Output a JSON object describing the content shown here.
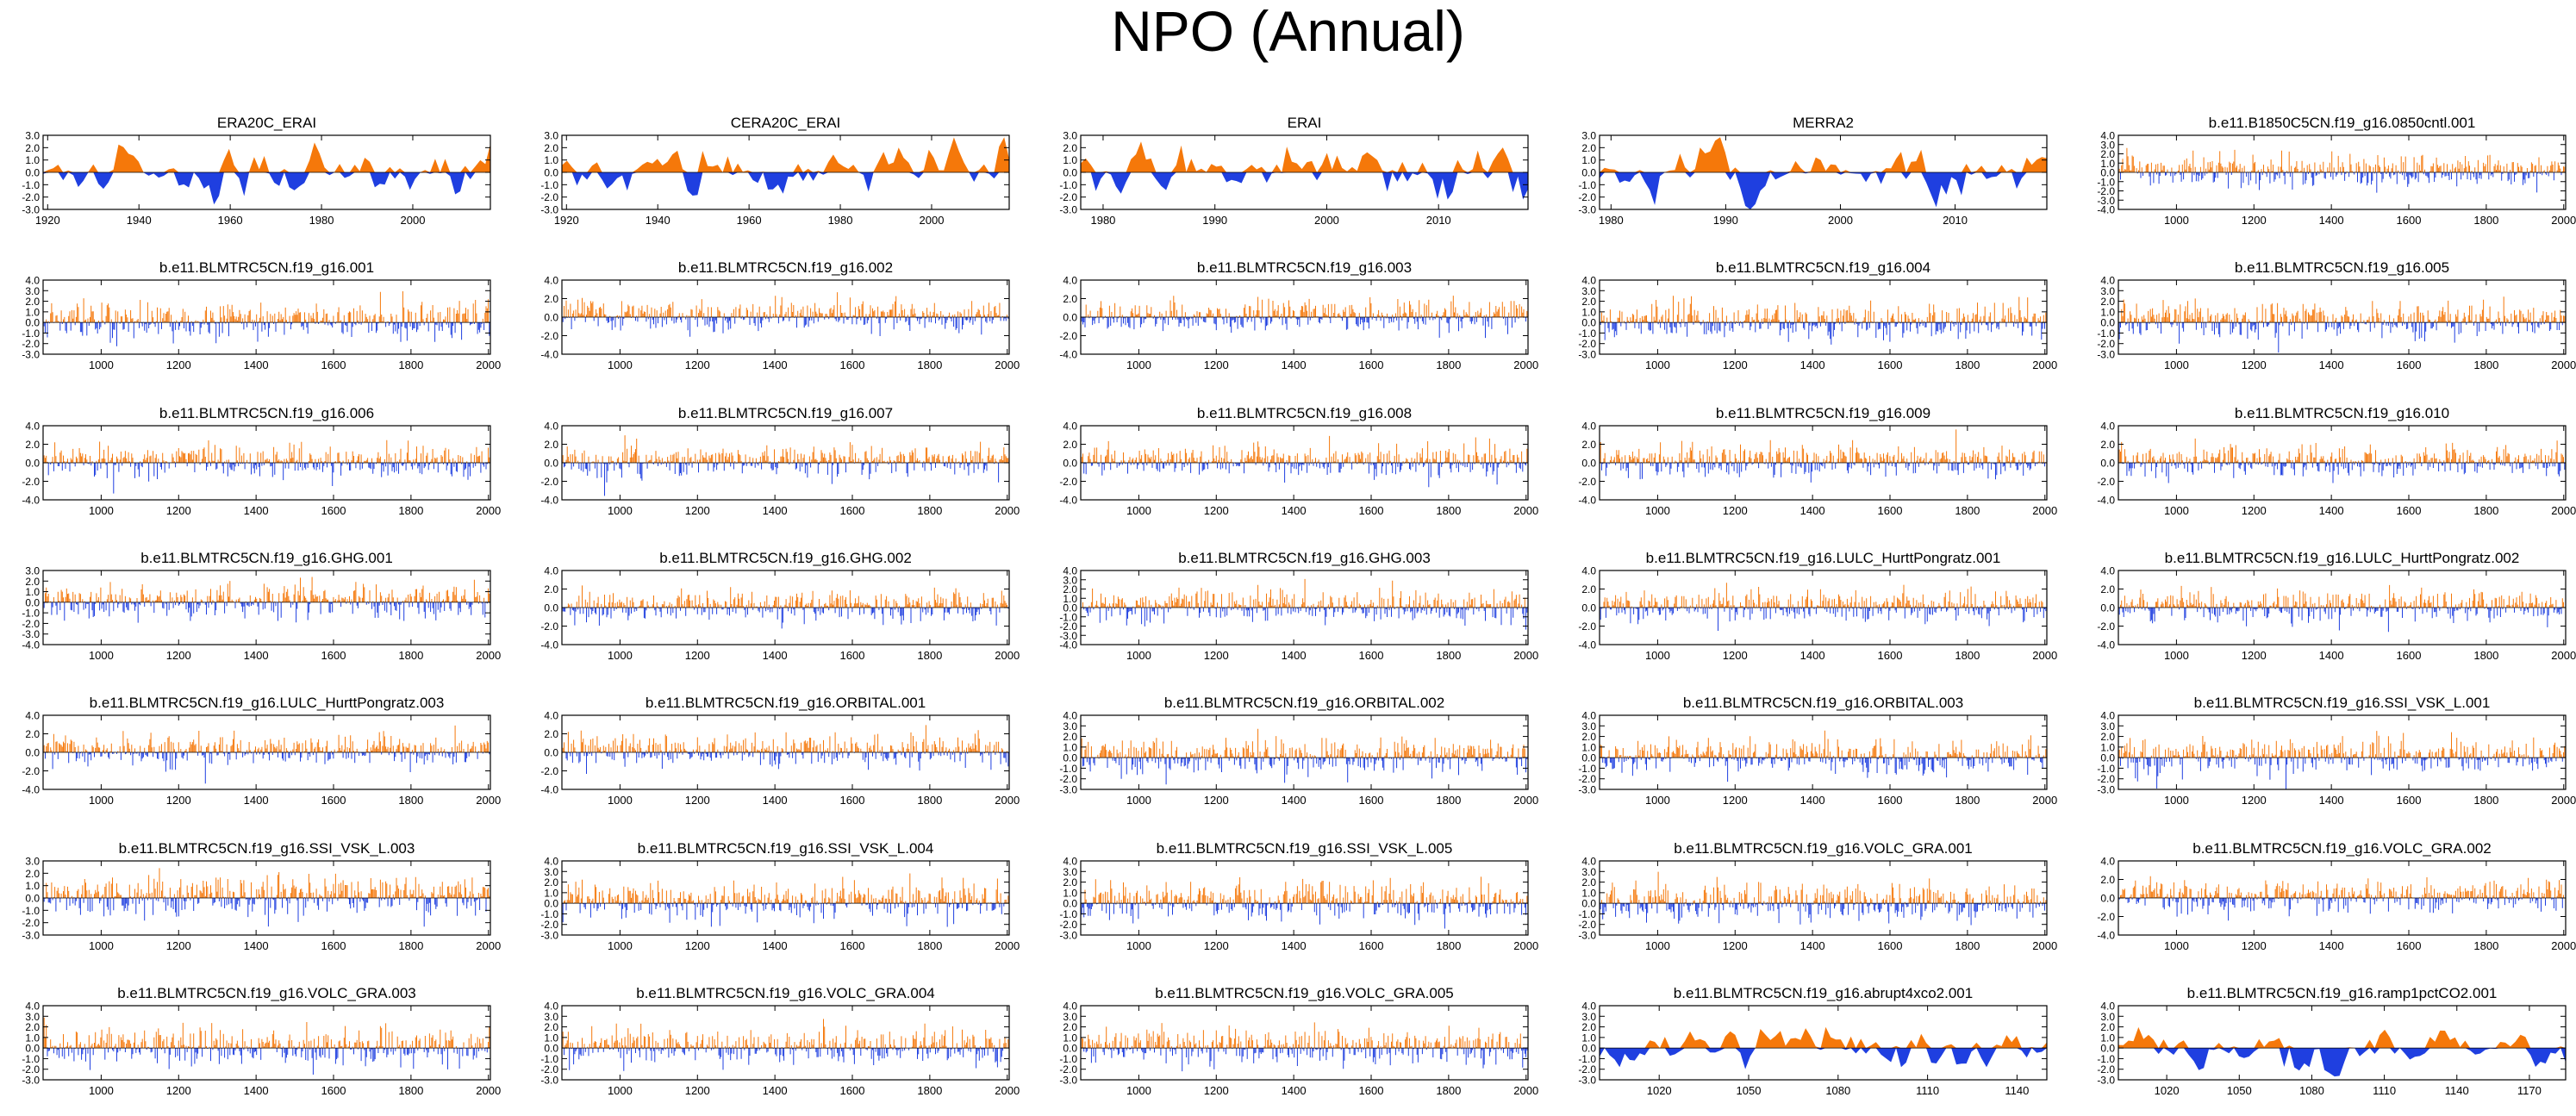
{
  "chart_data": {
    "title": "NPO (Annual)",
    "type": "area",
    "positive_color": "#f5780a",
    "negative_color": "#1f3fe0",
    "panels": [
      {
        "title": "ERA20C_ERAI",
        "style": "smooth",
        "ylim": [
          -3,
          3
        ],
        "yticks": [
          "3.0",
          "2.0",
          "1.0",
          "0.0",
          "-1.0",
          "-2.0",
          "-3.0"
        ],
        "xrange": [
          1919,
          2017
        ],
        "xticks": [
          1920,
          1940,
          1960,
          1980,
          2000
        ],
        "seed": 11
      },
      {
        "title": "CERA20C_ERAI",
        "style": "smooth",
        "ylim": [
          -3,
          3
        ],
        "yticks": [
          "3.0",
          "2.0",
          "1.0",
          "0.0",
          "-1.0",
          "-2.0",
          "-3.0"
        ],
        "xrange": [
          1919,
          2017
        ],
        "xticks": [
          1920,
          1940,
          1960,
          1980,
          2000
        ],
        "seed": 12
      },
      {
        "title": "ERAI",
        "style": "smooth",
        "ylim": [
          -3,
          3
        ],
        "yticks": [
          "3.0",
          "2.0",
          "1.0",
          "0.0",
          "-1.0",
          "-2.0",
          "-3.0"
        ],
        "xrange": [
          1978,
          2018
        ],
        "xticks": [
          1980,
          1990,
          2000,
          2010
        ],
        "seed": 13
      },
      {
        "title": "MERRA2",
        "style": "smooth",
        "ylim": [
          -3,
          3
        ],
        "yticks": [
          "3.0",
          "2.0",
          "1.0",
          "0.0",
          "-1.0",
          "-2.0",
          "-3.0"
        ],
        "xrange": [
          1979,
          2018
        ],
        "xticks": [
          1980,
          1990,
          2000,
          2010
        ],
        "seed": 14
      },
      {
        "title": "b.e11.B1850C5CN.f19_g16.0850cntl.001",
        "style": "spiky",
        "ylim": [
          -4,
          4
        ],
        "yticks": [
          "4.0",
          "3.0",
          "2.0",
          "1.0",
          "0.0",
          "-1.0",
          "-2.0",
          "-3.0",
          "-4.0"
        ],
        "xrange": [
          850,
          2005
        ],
        "xticks": [
          1000,
          1200,
          1400,
          1600,
          1800,
          2000
        ],
        "seed": 15
      },
      {
        "title": "b.e11.BLMTRC5CN.f19_g16.001",
        "style": "spiky",
        "ylim": [
          -3,
          4
        ],
        "yticks": [
          "4.0",
          "3.0",
          "2.0",
          "1.0",
          "0.0",
          "-1.0",
          "-2.0",
          "-3.0"
        ],
        "xrange": [
          850,
          2005
        ],
        "xticks": [
          1000,
          1200,
          1400,
          1600,
          1800,
          2000
        ],
        "seed": 21
      },
      {
        "title": "b.e11.BLMTRC5CN.f19_g16.002",
        "style": "spiky",
        "ylim": [
          -4,
          4
        ],
        "yticks": [
          "4.0",
          "2.0",
          "0.0",
          "-2.0",
          "-4.0"
        ],
        "xrange": [
          850,
          2005
        ],
        "xticks": [
          1000,
          1200,
          1400,
          1600,
          1800,
          2000
        ],
        "seed": 22
      },
      {
        "title": "b.e11.BLMTRC5CN.f19_g16.003",
        "style": "spiky",
        "ylim": [
          -4,
          4
        ],
        "yticks": [
          "4.0",
          "2.0",
          "0.0",
          "-2.0",
          "-4.0"
        ],
        "xrange": [
          850,
          2005
        ],
        "xticks": [
          1000,
          1200,
          1400,
          1600,
          1800,
          2000
        ],
        "seed": 23
      },
      {
        "title": "b.e11.BLMTRC5CN.f19_g16.004",
        "style": "spiky",
        "ylim": [
          -3,
          4
        ],
        "yticks": [
          "4.0",
          "3.0",
          "2.0",
          "1.0",
          "0.0",
          "-1.0",
          "-2.0",
          "-3.0"
        ],
        "xrange": [
          850,
          2005
        ],
        "xticks": [
          1000,
          1200,
          1400,
          1600,
          1800,
          2000
        ],
        "seed": 24
      },
      {
        "title": "b.e11.BLMTRC5CN.f19_g16.005",
        "style": "spiky",
        "ylim": [
          -3,
          4
        ],
        "yticks": [
          "4.0",
          "3.0",
          "2.0",
          "1.0",
          "0.0",
          "-1.0",
          "-2.0",
          "-3.0"
        ],
        "xrange": [
          850,
          2005
        ],
        "xticks": [
          1000,
          1200,
          1400,
          1600,
          1800,
          2000
        ],
        "seed": 25
      },
      {
        "title": "b.e11.BLMTRC5CN.f19_g16.006",
        "style": "spiky",
        "ylim": [
          -4,
          4
        ],
        "yticks": [
          "4.0",
          "2.0",
          "0.0",
          "-2.0",
          "-4.0"
        ],
        "xrange": [
          850,
          2005
        ],
        "xticks": [
          1000,
          1200,
          1400,
          1600,
          1800,
          2000
        ],
        "seed": 31
      },
      {
        "title": "b.e11.BLMTRC5CN.f19_g16.007",
        "style": "spiky",
        "ylim": [
          -4,
          4
        ],
        "yticks": [
          "4.0",
          "2.0",
          "0.0",
          "-2.0",
          "-4.0"
        ],
        "xrange": [
          850,
          2005
        ],
        "xticks": [
          1000,
          1200,
          1400,
          1600,
          1800,
          2000
        ],
        "seed": 32
      },
      {
        "title": "b.e11.BLMTRC5CN.f19_g16.008",
        "style": "spiky",
        "ylim": [
          -4,
          4
        ],
        "yticks": [
          "4.0",
          "2.0",
          "0.0",
          "-2.0",
          "-4.0"
        ],
        "xrange": [
          850,
          2005
        ],
        "xticks": [
          1000,
          1200,
          1400,
          1600,
          1800,
          2000
        ],
        "seed": 33
      },
      {
        "title": "b.e11.BLMTRC5CN.f19_g16.009",
        "style": "spiky",
        "ylim": [
          -4,
          4
        ],
        "yticks": [
          "4.0",
          "2.0",
          "0.0",
          "-2.0",
          "-4.0"
        ],
        "xrange": [
          850,
          2005
        ],
        "xticks": [
          1000,
          1200,
          1400,
          1600,
          1800,
          2000
        ],
        "seed": 34
      },
      {
        "title": "b.e11.BLMTRC5CN.f19_g16.010",
        "style": "spiky",
        "ylim": [
          -4,
          4
        ],
        "yticks": [
          "4.0",
          "2.0",
          "0.0",
          "-2.0",
          "-4.0"
        ],
        "xrange": [
          850,
          2005
        ],
        "xticks": [
          1000,
          1200,
          1400,
          1600,
          1800,
          2000
        ],
        "seed": 35
      },
      {
        "title": "b.e11.BLMTRC5CN.f19_g16.GHG.001",
        "style": "spiky",
        "ylim": [
          -4,
          3
        ],
        "yticks": [
          "3.0",
          "2.0",
          "1.0",
          "0.0",
          "-1.0",
          "-2.0",
          "-3.0",
          "-4.0"
        ],
        "xrange": [
          850,
          2005
        ],
        "xticks": [
          1000,
          1200,
          1400,
          1600,
          1800,
          2000
        ],
        "seed": 41
      },
      {
        "title": "b.e11.BLMTRC5CN.f19_g16.GHG.002",
        "style": "spiky",
        "ylim": [
          -4,
          4
        ],
        "yticks": [
          "4.0",
          "2.0",
          "0.0",
          "-2.0",
          "-4.0"
        ],
        "xrange": [
          850,
          2005
        ],
        "xticks": [
          1000,
          1200,
          1400,
          1600,
          1800,
          2000
        ],
        "seed": 42
      },
      {
        "title": "b.e11.BLMTRC5CN.f19_g16.GHG.003",
        "style": "spiky",
        "ylim": [
          -4,
          4
        ],
        "yticks": [
          "4.0",
          "3.0",
          "2.0",
          "1.0",
          "0.0",
          "-1.0",
          "-2.0",
          "-3.0",
          "-4.0"
        ],
        "xrange": [
          850,
          2005
        ],
        "xticks": [
          1000,
          1200,
          1400,
          1600,
          1800,
          2000
        ],
        "seed": 43
      },
      {
        "title": "b.e11.BLMTRC5CN.f19_g16.LULC_HurttPongratz.001",
        "style": "spiky",
        "ylim": [
          -4,
          4
        ],
        "yticks": [
          "4.0",
          "2.0",
          "0.0",
          "-2.0",
          "-4.0"
        ],
        "xrange": [
          850,
          2005
        ],
        "xticks": [
          1000,
          1200,
          1400,
          1600,
          1800,
          2000
        ],
        "seed": 44
      },
      {
        "title": "b.e11.BLMTRC5CN.f19_g16.LULC_HurttPongratz.002",
        "style": "spiky",
        "ylim": [
          -4,
          4
        ],
        "yticks": [
          "4.0",
          "2.0",
          "0.0",
          "-2.0",
          "-4.0"
        ],
        "xrange": [
          850,
          2005
        ],
        "xticks": [
          1000,
          1200,
          1400,
          1600,
          1800,
          2000
        ],
        "seed": 45
      },
      {
        "title": "b.e11.BLMTRC5CN.f19_g16.LULC_HurttPongratz.003",
        "style": "spiky",
        "ylim": [
          -4,
          4
        ],
        "yticks": [
          "4.0",
          "2.0",
          "0.0",
          "-2.0",
          "-4.0"
        ],
        "xrange": [
          850,
          2005
        ],
        "xticks": [
          1000,
          1200,
          1400,
          1600,
          1800,
          2000
        ],
        "seed": 51
      },
      {
        "title": "b.e11.BLMTRC5CN.f19_g16.ORBITAL.001",
        "style": "spiky",
        "ylim": [
          -4,
          4
        ],
        "yticks": [
          "4.0",
          "2.0",
          "0.0",
          "-2.0",
          "-4.0"
        ],
        "xrange": [
          850,
          2005
        ],
        "xticks": [
          1000,
          1200,
          1400,
          1600,
          1800,
          2000
        ],
        "seed": 52
      },
      {
        "title": "b.e11.BLMTRC5CN.f19_g16.ORBITAL.002",
        "style": "spiky",
        "ylim": [
          -3,
          4
        ],
        "yticks": [
          "4.0",
          "3.0",
          "2.0",
          "1.0",
          "0.0",
          "-1.0",
          "-2.0",
          "-3.0"
        ],
        "xrange": [
          850,
          2005
        ],
        "xticks": [
          1000,
          1200,
          1400,
          1600,
          1800,
          2000
        ],
        "seed": 53
      },
      {
        "title": "b.e11.BLMTRC5CN.f19_g16.ORBITAL.003",
        "style": "spiky",
        "ylim": [
          -3,
          4
        ],
        "yticks": [
          "4.0",
          "3.0",
          "2.0",
          "1.0",
          "0.0",
          "-1.0",
          "-2.0",
          "-3.0"
        ],
        "xrange": [
          850,
          2005
        ],
        "xticks": [
          1000,
          1200,
          1400,
          1600,
          1800,
          2000
        ],
        "seed": 54
      },
      {
        "title": "b.e11.BLMTRC5CN.f19_g16.SSI_VSK_L.001",
        "style": "spiky",
        "ylim": [
          -3,
          4
        ],
        "yticks": [
          "4.0",
          "3.0",
          "2.0",
          "1.0",
          "0.0",
          "-1.0",
          "-2.0",
          "-3.0"
        ],
        "xrange": [
          850,
          2005
        ],
        "xticks": [
          1000,
          1200,
          1400,
          1600,
          1800,
          2000
        ],
        "seed": 55
      },
      {
        "title": "b.e11.BLMTRC5CN.f19_g16.SSI_VSK_L.003",
        "style": "spiky",
        "ylim": [
          -3,
          3
        ],
        "yticks": [
          "3.0",
          "2.0",
          "1.0",
          "0.0",
          "-1.0",
          "-2.0",
          "-3.0"
        ],
        "xrange": [
          850,
          2005
        ],
        "xticks": [
          1000,
          1200,
          1400,
          1600,
          1800,
          2000
        ],
        "seed": 61
      },
      {
        "title": "b.e11.BLMTRC5CN.f19_g16.SSI_VSK_L.004",
        "style": "spiky",
        "ylim": [
          -3,
          4
        ],
        "yticks": [
          "4.0",
          "3.0",
          "2.0",
          "1.0",
          "0.0",
          "-1.0",
          "-2.0",
          "-3.0"
        ],
        "xrange": [
          850,
          2005
        ],
        "xticks": [
          1000,
          1200,
          1400,
          1600,
          1800,
          2000
        ],
        "seed": 62
      },
      {
        "title": "b.e11.BLMTRC5CN.f19_g16.SSI_VSK_L.005",
        "style": "spiky",
        "ylim": [
          -3,
          4
        ],
        "yticks": [
          "4.0",
          "3.0",
          "2.0",
          "1.0",
          "0.0",
          "-1.0",
          "-2.0",
          "-3.0"
        ],
        "xrange": [
          850,
          2005
        ],
        "xticks": [
          1000,
          1200,
          1400,
          1600,
          1800,
          2000
        ],
        "seed": 63
      },
      {
        "title": "b.e11.BLMTRC5CN.f19_g16.VOLC_GRA.001",
        "style": "spiky",
        "ylim": [
          -3,
          4
        ],
        "yticks": [
          "4.0",
          "3.0",
          "2.0",
          "1.0",
          "0.0",
          "-1.0",
          "-2.0",
          "-3.0"
        ],
        "xrange": [
          850,
          2005
        ],
        "xticks": [
          1000,
          1200,
          1400,
          1600,
          1800,
          2000
        ],
        "seed": 64
      },
      {
        "title": "b.e11.BLMTRC5CN.f19_g16.VOLC_GRA.002",
        "style": "spiky",
        "ylim": [
          -4,
          4
        ],
        "yticks": [
          "4.0",
          "2.0",
          "0.0",
          "-2.0",
          "-4.0"
        ],
        "xrange": [
          850,
          2005
        ],
        "xticks": [
          1000,
          1200,
          1400,
          1600,
          1800,
          2000
        ],
        "seed": 65
      },
      {
        "title": "b.e11.BLMTRC5CN.f19_g16.VOLC_GRA.003",
        "style": "spiky",
        "ylim": [
          -3,
          4
        ],
        "yticks": [
          "4.0",
          "3.0",
          "2.0",
          "1.0",
          "0.0",
          "-1.0",
          "-2.0",
          "-3.0"
        ],
        "xrange": [
          850,
          2005
        ],
        "xticks": [
          1000,
          1200,
          1400,
          1600,
          1800,
          2000
        ],
        "seed": 71
      },
      {
        "title": "b.e11.BLMTRC5CN.f19_g16.VOLC_GRA.004",
        "style": "spiky",
        "ylim": [
          -3,
          4
        ],
        "yticks": [
          "4.0",
          "3.0",
          "2.0",
          "1.0",
          "0.0",
          "-1.0",
          "-2.0",
          "-3.0"
        ],
        "xrange": [
          850,
          2005
        ],
        "xticks": [
          1000,
          1200,
          1400,
          1600,
          1800,
          2000
        ],
        "seed": 72
      },
      {
        "title": "b.e11.BLMTRC5CN.f19_g16.VOLC_GRA.005",
        "style": "spiky",
        "ylim": [
          -3,
          4
        ],
        "yticks": [
          "4.0",
          "3.0",
          "2.0",
          "1.0",
          "0.0",
          "-1.0",
          "-2.0",
          "-3.0"
        ],
        "xrange": [
          850,
          2005
        ],
        "xticks": [
          1000,
          1200,
          1400,
          1600,
          1800,
          2000
        ],
        "seed": 73
      },
      {
        "title": "b.e11.BLMTRC5CN.f19_g16.abrupt4xco2.001",
        "style": "smooth",
        "ylim": [
          -3,
          4
        ],
        "yticks": [
          "4.0",
          "3.0",
          "2.0",
          "1.0",
          "0.0",
          "-1.0",
          "-2.0",
          "-3.0"
        ],
        "xrange": [
          1000,
          1150
        ],
        "xticks": [
          1020,
          1050,
          1080,
          1110,
          1140
        ],
        "seed": 74
      },
      {
        "title": "b.e11.BLMTRC5CN.f19_g16.ramp1pctCO2.001",
        "style": "smooth",
        "ylim": [
          -3,
          4
        ],
        "yticks": [
          "4.0",
          "3.0",
          "2.0",
          "1.0",
          "0.0",
          "-1.0",
          "-2.0",
          "-3.0"
        ],
        "xrange": [
          1000,
          1185
        ],
        "xticks": [
          1020,
          1050,
          1080,
          1110,
          1140,
          1170
        ],
        "seed": 75
      }
    ]
  }
}
